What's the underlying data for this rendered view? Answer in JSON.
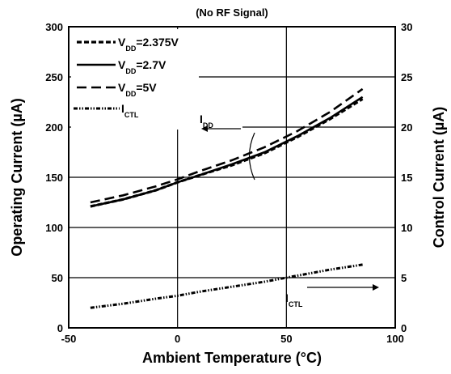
{
  "chart_data": {
    "type": "line",
    "title": "(No RF Signal)",
    "xlabel": "Ambient Temperature",
    "xlabel_unit": "(°C)",
    "ylabel": "Operating Current",
    "ylabel_unit": "(µA)",
    "y2label": "Control Current",
    "y2label_unit": "(µA)",
    "xlim": [
      -50,
      100
    ],
    "ylim": [
      0,
      300
    ],
    "y2lim": [
      0,
      30
    ],
    "x_ticks": [
      "-50",
      "0",
      "50",
      "100"
    ],
    "y_ticks": [
      "0",
      "50",
      "100",
      "150",
      "200",
      "250",
      "300"
    ],
    "y2_ticks": [
      "0",
      "5",
      "10",
      "15",
      "20",
      "25",
      "30"
    ],
    "grid": true,
    "legend_position": "top-left",
    "series": [
      {
        "name_main": "V",
        "name_sub": "DD",
        "name_rest": "=2.375V",
        "axis": "left",
        "style": "short-dash",
        "x": [
          -40,
          -25,
          -10,
          0,
          10,
          25,
          40,
          55,
          70,
          85
        ],
        "y": [
          121,
          128,
          137,
          145,
          152,
          162,
          174,
          190,
          208,
          228
        ]
      },
      {
        "name_main": "V",
        "name_sub": "DD",
        "name_rest": "=2.7V",
        "axis": "left",
        "style": "solid",
        "x": [
          -40,
          -25,
          -10,
          0,
          10,
          25,
          40,
          55,
          70,
          85
        ],
        "y": [
          121,
          128,
          137,
          145,
          152,
          163,
          175,
          191,
          209,
          230
        ]
      },
      {
        "name_main": "V",
        "name_sub": "DD",
        "name_rest": "=5V",
        "axis": "left",
        "style": "long-dash",
        "x": [
          -40,
          -25,
          -10,
          0,
          10,
          25,
          40,
          55,
          70,
          85
        ],
        "y": [
          125,
          132,
          141,
          148,
          156,
          167,
          180,
          196,
          215,
          238
        ]
      },
      {
        "name_main": "I",
        "name_sub": "CTL",
        "name_rest": "",
        "axis": "right",
        "style": "dash-dot-dot",
        "x": [
          -40,
          -25,
          -10,
          0,
          10,
          25,
          40,
          55,
          70,
          85
        ],
        "y": [
          2.0,
          2.4,
          2.9,
          3.2,
          3.6,
          4.1,
          4.6,
          5.2,
          5.8,
          6.3
        ]
      }
    ],
    "annotations": [
      {
        "main": "I",
        "sub": "DD",
        "arrow": "left"
      },
      {
        "main": "I",
        "sub": "CTL",
        "arrow": "right"
      }
    ]
  }
}
